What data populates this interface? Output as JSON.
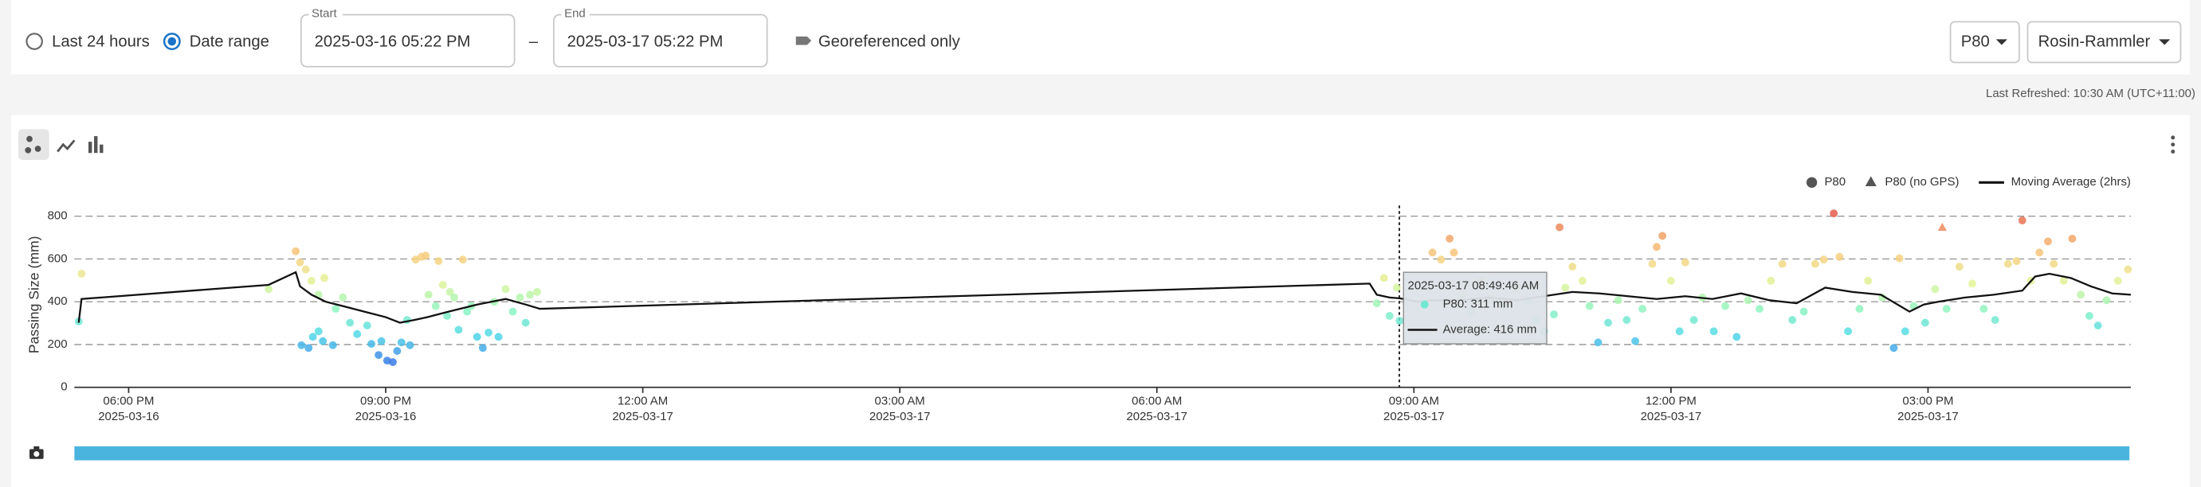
{
  "controls": {
    "last_24_hours": "Last 24 hours",
    "date_range": "Date range",
    "start_label": "Start",
    "start_value": "2025-03-16 05:22 PM",
    "separator": "–",
    "end_label": "End",
    "end_value": "2025-03-17 05:22 PM",
    "georeferenced": "Georeferenced only",
    "metric": "P80",
    "model": "Rosin-Rammler",
    "last_refreshed": "Last Refreshed: 10:30 AM (UTC+11:00)"
  },
  "chart_data": {
    "type": "scatter",
    "y_label": "Passing Size (mm)",
    "xlim": [
      "2025-03-16 17:22",
      "2025-03-17 17:22"
    ],
    "xticks": [
      {
        "value": "2025-03-16 18:00",
        "label": [
          "06:00 PM",
          "2025-03-16"
        ]
      },
      {
        "value": "2025-03-16 21:00",
        "label": [
          "09:00 PM",
          "2025-03-16"
        ]
      },
      {
        "value": "2025-03-17 00:00",
        "label": [
          "12:00 AM",
          "2025-03-17"
        ]
      },
      {
        "value": "2025-03-17 03:00",
        "label": [
          "03:00 AM",
          "2025-03-17"
        ]
      },
      {
        "value": "2025-03-17 06:00",
        "label": [
          "06:00 AM",
          "2025-03-17"
        ]
      },
      {
        "value": "2025-03-17 09:00",
        "label": [
          "09:00 AM",
          "2025-03-17"
        ]
      },
      {
        "value": "2025-03-17 12:00",
        "label": [
          "12:00 PM",
          "2025-03-17"
        ]
      },
      {
        "value": "2025-03-17 15:00",
        "label": [
          "03:00 PM",
          "2025-03-17"
        ]
      }
    ],
    "ylim": [
      0,
      850
    ],
    "yticks": [
      0,
      200,
      400,
      600,
      800
    ],
    "grid": true,
    "legend": "top-right",
    "colormap": [
      "#2040d8",
      "#3a7de8",
      "#4ed8e8",
      "#8ef5c0",
      "#e0f598",
      "#f8d080",
      "#f09860",
      "#e04040"
    ],
    "series": [
      {
        "name": "P80",
        "marker": "circle",
        "color": "#555555",
        "x": [
          "2025-03-16 17:25",
          "2025-03-16 17:27",
          "2025-03-16 19:38",
          "2025-03-16 19:57",
          "2025-03-16 20:00",
          "2025-03-16 20:04",
          "2025-03-16 20:08",
          "2025-03-16 20:13",
          "2025-03-16 20:17",
          "2025-03-16 20:01",
          "2025-03-16 20:06",
          "2025-03-16 20:09",
          "2025-03-16 20:13",
          "2025-03-16 20:16",
          "2025-03-16 20:23",
          "2025-03-16 20:25",
          "2025-03-16 20:30",
          "2025-03-16 20:35",
          "2025-03-16 20:40",
          "2025-03-16 20:47",
          "2025-03-16 20:50",
          "2025-03-16 20:55",
          "2025-03-16 20:57",
          "2025-03-16 21:01",
          "2025-03-16 21:05",
          "2025-03-16 21:08",
          "2025-03-16 21:11",
          "2025-03-16 21:15",
          "2025-03-16 21:17",
          "2025-03-16 21:21",
          "2025-03-16 21:25",
          "2025-03-16 21:28",
          "2025-03-16 21:30",
          "2025-03-16 21:35",
          "2025-03-16 21:37",
          "2025-03-16 21:40",
          "2025-03-16 21:43",
          "2025-03-16 21:45",
          "2025-03-16 21:48",
          "2025-03-16 21:51",
          "2025-03-16 21:54",
          "2025-03-16 21:57",
          "2025-03-16 22:00",
          "2025-03-16 22:04",
          "2025-03-16 22:08",
          "2025-03-16 22:12",
          "2025-03-16 22:16",
          "2025-03-16 22:19",
          "2025-03-16 22:24",
          "2025-03-16 22:29",
          "2025-03-16 22:34",
          "2025-03-16 22:38",
          "2025-03-16 22:41",
          "2025-03-16 22:46",
          "2025-03-17 08:34",
          "2025-03-17 08:39",
          "2025-03-17 08:43",
          "2025-03-17 08:48",
          "2025-03-17 08:50",
          "2025-03-17 09:13",
          "2025-03-17 09:19",
          "2025-03-17 09:25",
          "2025-03-17 09:28",
          "2025-03-17 09:34",
          "2025-03-17 09:40",
          "2025-03-17 09:47",
          "2025-03-17 09:54",
          "2025-03-17 10:02",
          "2025-03-17 10:12",
          "2025-03-17 10:20",
          "2025-03-17 10:25",
          "2025-03-17 10:31",
          "2025-03-17 10:38",
          "2025-03-17 10:42",
          "2025-03-17 10:46",
          "2025-03-17 10:51",
          "2025-03-17 10:58",
          "2025-03-17 11:03",
          "2025-03-17 11:09",
          "2025-03-17 11:16",
          "2025-03-17 11:23",
          "2025-03-17 11:29",
          "2025-03-17 11:35",
          "2025-03-17 11:40",
          "2025-03-17 11:47",
          "2025-03-17 11:50",
          "2025-03-17 11:54",
          "2025-03-17 12:00",
          "2025-03-17 12:06",
          "2025-03-17 12:10",
          "2025-03-17 12:16",
          "2025-03-17 12:22",
          "2025-03-17 12:30",
          "2025-03-17 12:38",
          "2025-03-17 12:46",
          "2025-03-17 12:54",
          "2025-03-17 13:02",
          "2025-03-17 13:10",
          "2025-03-17 13:18",
          "2025-03-17 13:25",
          "2025-03-17 13:33",
          "2025-03-17 13:41",
          "2025-03-17 13:47",
          "2025-03-17 13:54",
          "2025-03-17 13:58",
          "2025-03-17 14:04",
          "2025-03-17 14:12",
          "2025-03-17 14:18",
          "2025-03-17 14:28",
          "2025-03-17 14:36",
          "2025-03-17 14:40",
          "2025-03-17 14:44",
          "2025-03-17 14:50",
          "2025-03-17 14:58",
          "2025-03-17 15:05",
          "2025-03-17 15:13",
          "2025-03-17 15:22",
          "2025-03-17 15:31",
          "2025-03-17 15:39",
          "2025-03-17 15:47",
          "2025-03-17 15:56",
          "2025-03-17 16:02",
          "2025-03-17 16:06",
          "2025-03-17 16:12",
          "2025-03-17 16:18",
          "2025-03-17 16:24",
          "2025-03-17 16:28",
          "2025-03-17 16:35",
          "2025-03-17 16:41",
          "2025-03-17 16:47",
          "2025-03-17 16:53",
          "2025-03-17 16:59",
          "2025-03-17 17:05",
          "2025-03-17 17:13",
          "2025-03-17 17:20"
        ],
        "values": [
          308,
          531,
          459,
          636,
          584,
          551,
          498,
          433,
          511,
          197,
          184,
          236,
          262,
          216,
          197,
          367,
          420,
          302,
          249,
          289,
          203,
          151,
          216,
          125,
          118,
          170,
          210,
          315,
          197,
          597,
          610,
          616,
          433,
          380,
          590,
          479,
          334,
          446,
          420,
          269,
          597,
          354,
          380,
          236,
          184,
          256,
          400,
          236,
          459,
          354,
          420,
          302,
          433,
          446,
          393,
          511,
          334,
          466,
          311,
          630,
          597,
          695,
          630,
          433,
          354,
          498,
          420,
          380,
          459,
          400,
          315,
          262,
          341,
          748,
          466,
          564,
          498,
          380,
          210,
          302,
          407,
          315,
          216,
          367,
          577,
          656,
          708,
          498,
          262,
          584,
          315,
          420,
          262,
          380,
          236,
          407,
          367,
          498,
          577,
          315,
          354,
          577,
          597,
          813,
          610,
          262,
          367,
          498,
          420,
          184,
          603,
          262,
          380,
          302,
          459,
          367,
          564,
          485,
          367,
          315,
          577,
          590,
          780,
          498,
          630,
          682,
          577,
          498,
          695,
          433,
          334,
          289,
          407,
          498,
          551
        ]
      },
      {
        "name": "P80 (no GPS)",
        "marker": "triangle",
        "color": "#555555",
        "x": [
          "2025-03-17 15:10"
        ],
        "values": [
          748
        ]
      },
      {
        "name": "Moving Average (2hrs)",
        "type": "line",
        "color": "#111111",
        "x": [
          "2025-03-16 17:25",
          "2025-03-16 17:27",
          "2025-03-16 19:38",
          "2025-03-16 19:57",
          "2025-03-16 20:00",
          "2025-03-16 20:08",
          "2025-03-16 20:18",
          "2025-03-16 20:30",
          "2025-03-16 20:45",
          "2025-03-16 21:00",
          "2025-03-16 21:10",
          "2025-03-16 21:20",
          "2025-03-16 21:29",
          "2025-03-16 21:44",
          "2025-03-16 22:04",
          "2025-03-16 22:24",
          "2025-03-16 22:38",
          "2025-03-16 22:48",
          "2025-03-17 08:29",
          "2025-03-17 08:34",
          "2025-03-17 08:43",
          "2025-03-17 08:50",
          "2025-03-17 08:58",
          "2025-03-17 09:03",
          "2025-03-17 09:13",
          "2025-03-17 09:32",
          "2025-03-17 09:52",
          "2025-03-17 10:12",
          "2025-03-17 10:31",
          "2025-03-17 10:51",
          "2025-03-17 11:10",
          "2025-03-17 11:30",
          "2025-03-17 11:50",
          "2025-03-17 12:10",
          "2025-03-17 12:29",
          "2025-03-17 12:49",
          "2025-03-17 13:09",
          "2025-03-17 13:28",
          "2025-03-17 13:48",
          "2025-03-17 14:07",
          "2025-03-17 14:27",
          "2025-03-17 14:47",
          "2025-03-17 14:57",
          "2025-03-17 15:07",
          "2025-03-17 15:26",
          "2025-03-17 15:46",
          "2025-03-17 16:06",
          "2025-03-17 16:15",
          "2025-03-17 16:25",
          "2025-03-17 16:40",
          "2025-03-17 16:54",
          "2025-03-17 17:09",
          "2025-03-17 17:22"
        ],
        "values": [
          302,
          413,
          479,
          538,
          472,
          433,
          400,
          380,
          354,
          328,
          302,
          315,
          328,
          354,
          387,
          413,
          387,
          367,
          485,
          433,
          420,
          416,
          407,
          400,
          407,
          407,
          420,
          407,
          426,
          446,
          439,
          426,
          413,
          426,
          413,
          439,
          407,
          393,
          466,
          446,
          433,
          354,
          387,
          400,
          420,
          433,
          452,
          518,
          531,
          511,
          472,
          439,
          433
        ]
      }
    ],
    "tooltip": {
      "x": "2025-03-17 08:49:46",
      "time": "2025-03-17  08:49:46 AM",
      "p80": "P80:  311 mm",
      "average": "Average:  416 mm"
    }
  }
}
